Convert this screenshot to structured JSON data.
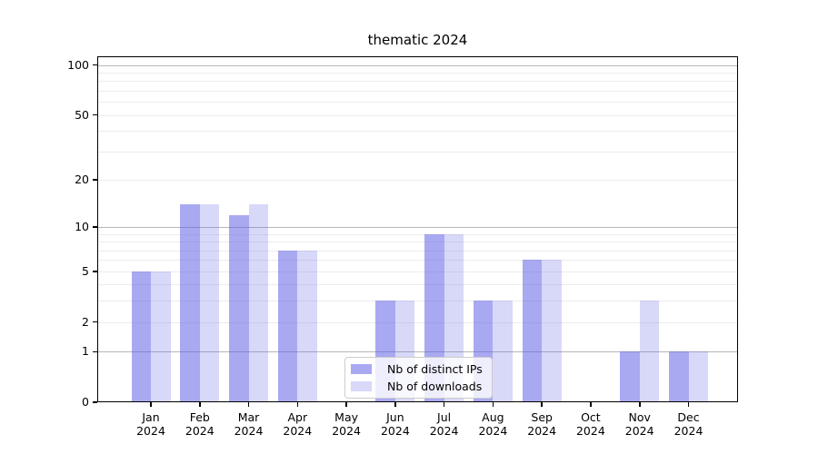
{
  "title": "thematic 2024",
  "colors": {
    "bar_base": "#6262e8",
    "ips_fill": "rgba(98,98,232,0.55)",
    "downloads_fill": "rgba(98,98,232,0.25)",
    "grid_major": "#b6b6b6",
    "grid_minor": "#ececec",
    "axis": "#000000",
    "legend_border": "#cccccc"
  },
  "chart_data": {
    "type": "bar",
    "title": "thematic 2024",
    "xlabel": "",
    "ylabel": "",
    "months": [
      "Jan",
      "Feb",
      "Mar",
      "Apr",
      "May",
      "Jun",
      "Jul",
      "Aug",
      "Sep",
      "Oct",
      "Nov",
      "Dec"
    ],
    "year_label": "2024",
    "series": [
      {
        "name": "Nb of distinct IPs",
        "values": [
          5,
          14,
          12,
          7,
          0,
          3,
          9,
          3,
          6,
          0,
          1,
          1
        ]
      },
      {
        "name": "Nb of downloads",
        "values": [
          5,
          14,
          14,
          7,
          0,
          3,
          9,
          3,
          6,
          0,
          3,
          1
        ]
      }
    ],
    "yscale": "log1p",
    "ylim": [
      0,
      112
    ],
    "yticks": [
      0,
      1,
      2,
      5,
      10,
      20,
      50,
      100
    ],
    "ytick_labels": [
      "0",
      "1",
      "2",
      "5",
      "10",
      "20",
      "50",
      "100"
    ],
    "grid_major_values": [
      1,
      10,
      100
    ],
    "grid_minor_values": [
      2,
      3,
      4,
      5,
      6,
      7,
      8,
      9,
      20,
      30,
      40,
      50,
      60,
      70,
      80,
      90
    ],
    "legend": {
      "entries": [
        "Nb of distinct IPs",
        "Nb of downloads"
      ],
      "position": "inside lower center"
    },
    "grid": "horizontal major+minor"
  }
}
